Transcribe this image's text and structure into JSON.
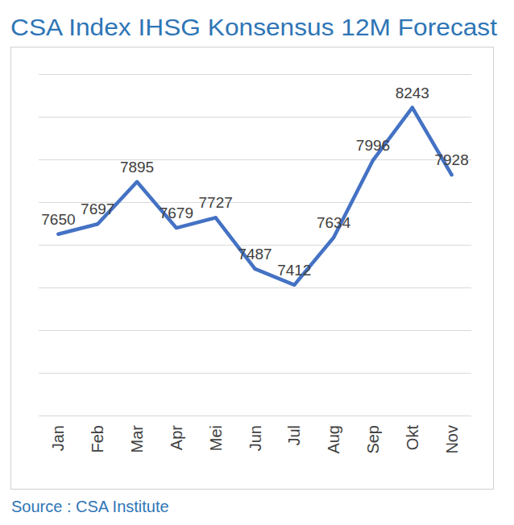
{
  "chart_data": {
    "type": "line",
    "title": "CSA Index IHSG Konsensus 12M Forecast",
    "source": "Source : CSA Institute",
    "categories": [
      "Jan",
      "Feb",
      "Mar",
      "Apr",
      "Mei",
      "Jun",
      "Jul",
      "Aug",
      "Sep",
      "Okt",
      "Nov"
    ],
    "values": [
      7650,
      7697,
      7895,
      7679,
      7727,
      7487,
      7412,
      7634,
      7996,
      8243,
      7928
    ],
    "color": "#4472c4",
    "ylim": [
      6800,
      8400
    ],
    "yticks": [
      6800,
      7000,
      7200,
      7400,
      7600,
      7800,
      8000,
      8200,
      8400
    ],
    "grid": true,
    "data_labels": true,
    "tick_labels": "x",
    "marker": "none",
    "line_style": "solid"
  }
}
